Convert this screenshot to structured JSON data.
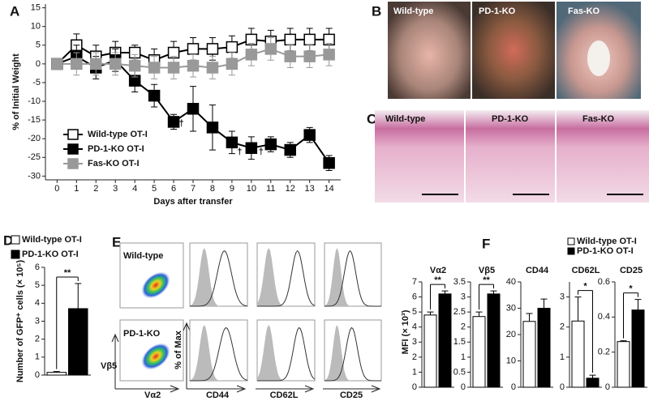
{
  "panel_letters": [
    "A",
    "B",
    "C",
    "D",
    "E",
    "F"
  ],
  "panel_b_labels": [
    "Wild-type",
    "PD-1-KO",
    "Fas-KO"
  ],
  "panel_c_labels": [
    "Wild-type",
    "PD-1-KO",
    "Fas-KO"
  ],
  "panel_e": {
    "row_labels": [
      "Wild-type",
      "PD-1-KO"
    ],
    "x_label": "Vα2",
    "y_label": "Vβ5",
    "hist_ylabel": "% of Max",
    "markers": [
      "CD44",
      "CD62L",
      "CD25"
    ]
  },
  "panel_f": {
    "ylabel": "MFI (× 10³)",
    "legend": [
      "Wild-type OT-I",
      "PD-1-KO OT-I"
    ]
  },
  "chart_data": [
    {
      "type": "line",
      "ylabel": "% of Initial Weight",
      "xlabel": "Days after transfer",
      "x": [
        0,
        1,
        2,
        3,
        4,
        5,
        6,
        7,
        8,
        9,
        10,
        11,
        12,
        13,
        14
      ],
      "xlim": [
        -0.6,
        14.6
      ],
      "ylim": [
        -31,
        16
      ],
      "xticks": [
        0,
        1,
        2,
        3,
        4,
        5,
        6,
        7,
        8,
        9,
        10,
        11,
        12,
        13,
        14
      ],
      "yticks": [
        -30,
        -25,
        -20,
        -15,
        -10,
        -5,
        0,
        5,
        10,
        15
      ],
      "legend_position": "lower left",
      "series": [
        {
          "name": "Wild-type OT-I",
          "color": "#ffffff",
          "values": [
            0,
            5,
            2,
            3,
            3,
            1,
            3,
            4,
            4,
            4.5,
            6.5,
            6,
            6.5,
            6.5,
            6.5
          ],
          "errors": [
            0.5,
            3,
            3,
            3,
            2,
            3,
            3,
            3,
            3,
            3,
            3,
            3,
            3,
            3,
            3
          ]
        },
        {
          "name": "PD-1-KO OT-I",
          "color": "#000000",
          "values": [
            0,
            2,
            -1,
            1,
            -4.5,
            -8.5,
            -15.5,
            -12,
            -17,
            -21,
            -22.5,
            -21.5,
            -23,
            -19,
            -26.5
          ],
          "errors": [
            0.5,
            3,
            3,
            3,
            3,
            3,
            2,
            6,
            6,
            3,
            3,
            2,
            2,
            2,
            2
          ]
        },
        {
          "name": "Fas-KO OT-I",
          "color": "#999999",
          "values": [
            0,
            0,
            0,
            0,
            -0.5,
            -1,
            -1,
            -0.5,
            -1,
            0,
            2.5,
            4,
            2,
            2,
            2.5
          ],
          "errors": [
            0.5,
            3,
            3,
            3,
            3,
            3,
            3,
            3,
            3,
            3,
            3,
            3,
            3,
            3,
            3
          ]
        }
      ],
      "annotations": [
        {
          "text": "†",
          "x": 6.4,
          "y": -16
        },
        {
          "text": "†",
          "x": 9.4,
          "y": -23.5
        },
        {
          "text": "†",
          "x": 10.5,
          "y": -23.5
        }
      ]
    },
    {
      "type": "bar",
      "ylabel": "Number of GFP⁺ cells (× 10⁵)",
      "ylim": [
        0,
        6
      ],
      "yticks": [
        0,
        1,
        2,
        3,
        4,
        5,
        6
      ],
      "annotation": "**",
      "series": [
        {
          "name": "Wild-type OT-I",
          "color": "#ffffff",
          "values": [
            0.15
          ],
          "errors": [
            0.05
          ]
        },
        {
          "name": "PD-1-KO OT-I",
          "color": "#000000",
          "values": [
            3.7
          ],
          "errors": [
            1.4
          ]
        }
      ]
    },
    {
      "type": "bar",
      "title": "Vα2",
      "ylim": [
        0,
        7
      ],
      "yticks": [
        0,
        1,
        2,
        3,
        4,
        5,
        6,
        7
      ],
      "annotation": "**",
      "series": [
        {
          "color": "#ffffff",
          "values": [
            4.8
          ],
          "errors": [
            0.2
          ]
        },
        {
          "color": "#000000",
          "values": [
            6.2
          ],
          "errors": [
            0.2
          ]
        }
      ]
    },
    {
      "type": "bar",
      "title": "Vβ5",
      "ylim": [
        0,
        3.5
      ],
      "yticks": [
        0,
        0.5,
        1,
        1.5,
        2,
        2.5,
        3,
        3.5
      ],
      "annotation": "**",
      "series": [
        {
          "color": "#ffffff",
          "values": [
            2.35
          ],
          "errors": [
            0.15
          ]
        },
        {
          "color": "#000000",
          "values": [
            3.1
          ],
          "errors": [
            0.1
          ]
        }
      ]
    },
    {
      "type": "bar",
      "title": "CD44",
      "ylim": [
        0,
        40
      ],
      "yticks": [
        0,
        10,
        20,
        30,
        40
      ],
      "series": [
        {
          "color": "#ffffff",
          "values": [
            25
          ],
          "errors": [
            3
          ]
        },
        {
          "color": "#000000",
          "values": [
            30
          ],
          "errors": [
            3.5
          ]
        }
      ]
    },
    {
      "type": "bar",
      "title": "CD62L",
      "ylim": [
        0,
        3.5
      ],
      "yticks": [
        0,
        1,
        2,
        3
      ],
      "annotation": "*",
      "series": [
        {
          "color": "#ffffff",
          "values": [
            2.2
          ],
          "errors": [
            0.8
          ]
        },
        {
          "color": "#000000",
          "values": [
            0.3
          ],
          "errors": [
            0.1
          ]
        }
      ]
    },
    {
      "type": "bar",
      "title": "CD25",
      "ylim": [
        0,
        0.6
      ],
      "yticks": [
        0,
        0.2,
        0.4,
        0.6
      ],
      "annotation": "*",
      "series": [
        {
          "color": "#ffffff",
          "values": [
            0.26
          ],
          "errors": [
            0.005
          ]
        },
        {
          "color": "#000000",
          "values": [
            0.44
          ],
          "errors": [
            0.06
          ]
        }
      ]
    }
  ]
}
